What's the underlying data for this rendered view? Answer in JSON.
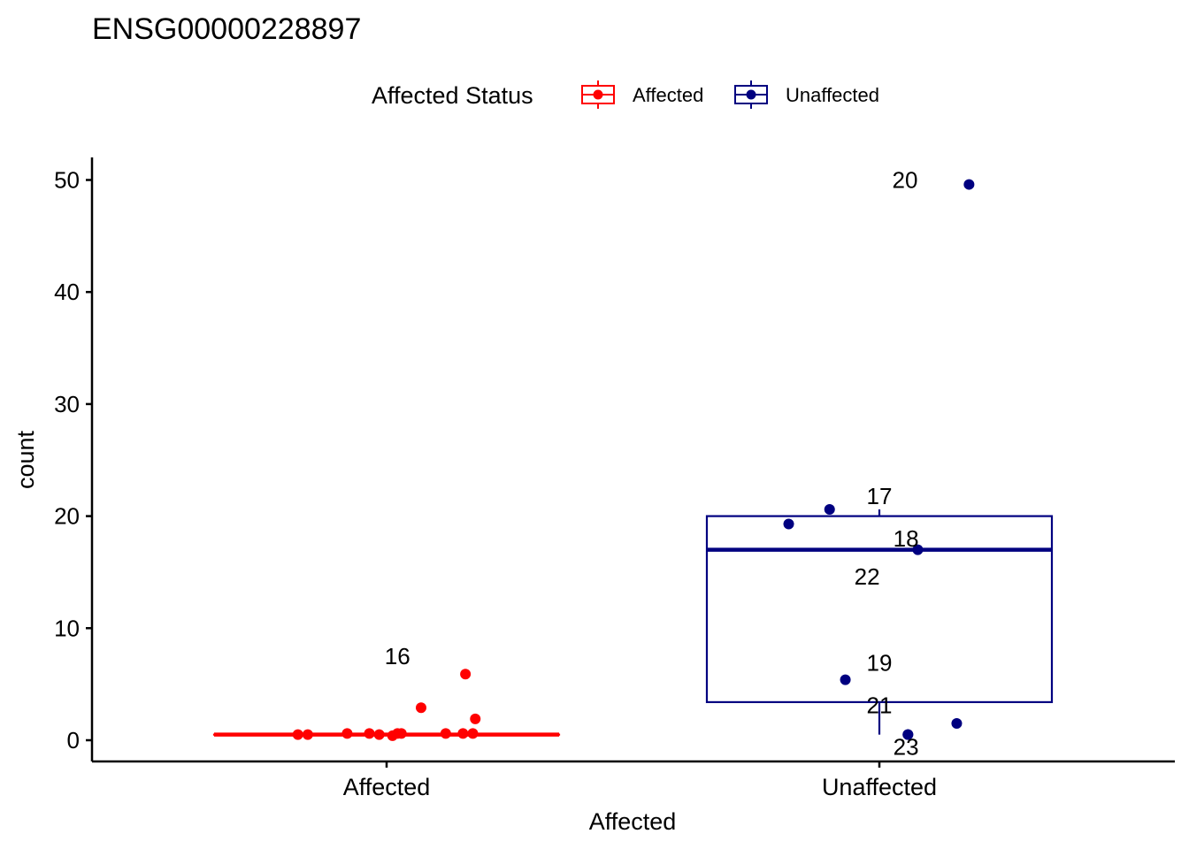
{
  "chart_data": {
    "type": "box",
    "title": "ENSG00000228897",
    "xlabel": "Affected",
    "ylabel": "count",
    "ylim": [
      -2,
      52
    ],
    "y_ticks": [
      0,
      10,
      20,
      30,
      40,
      50
    ],
    "categories": [
      "Affected",
      "Unaffected"
    ],
    "legend": {
      "title": "Affected Status",
      "position": "top",
      "entries": [
        {
          "label": "Affected",
          "color": "#ff0000"
        },
        {
          "label": "Unaffected",
          "color": "#000080"
        }
      ]
    },
    "grid": false,
    "boxes": [
      {
        "category": "Affected",
        "color": "#ff0000",
        "lower_whisker": 0.5,
        "q1": 0.5,
        "median": 0.5,
        "q3": 0.5,
        "upper_whisker": 0.5
      },
      {
        "category": "Unaffected",
        "color": "#000080",
        "lower_whisker": 0.5,
        "q1": 3.4,
        "median": 17.0,
        "q3": 20.0,
        "upper_whisker": 20.6
      }
    ],
    "points": [
      {
        "category": "Affected",
        "jitter": -0.18,
        "y": 0.5
      },
      {
        "category": "Affected",
        "jitter": -0.16,
        "y": 0.5
      },
      {
        "category": "Affected",
        "jitter": -0.08,
        "y": 0.6
      },
      {
        "category": "Affected",
        "jitter": -0.035,
        "y": 0.6
      },
      {
        "category": "Affected",
        "jitter": -0.015,
        "y": 0.5
      },
      {
        "category": "Affected",
        "jitter": 0.012,
        "y": 0.4
      },
      {
        "category": "Affected",
        "jitter": 0.022,
        "y": 0.6
      },
      {
        "category": "Affected",
        "jitter": 0.03,
        "y": 0.6
      },
      {
        "category": "Affected",
        "jitter": 0.07,
        "y": 2.9
      },
      {
        "category": "Affected",
        "jitter": 0.12,
        "y": 0.6
      },
      {
        "category": "Affected",
        "jitter": 0.155,
        "y": 0.6
      },
      {
        "category": "Affected",
        "jitter": 0.16,
        "y": 5.9,
        "label": "16"
      },
      {
        "category": "Affected",
        "jitter": 0.175,
        "y": 0.6
      },
      {
        "category": "Affected",
        "jitter": 0.18,
        "y": 1.9
      },
      {
        "category": "Unaffected",
        "jitter": -0.184,
        "y": 19.3
      },
      {
        "category": "Unaffected",
        "jitter": -0.101,
        "y": 20.6,
        "label": "17"
      },
      {
        "category": "Unaffected",
        "jitter": 0.078,
        "y": 17.0,
        "label": "18"
      },
      {
        "category": "Unaffected",
        "jitter": -0.069,
        "y": 5.4,
        "label": "19"
      },
      {
        "category": "Unaffected",
        "jitter": 0.182,
        "y": 49.6,
        "label": "20"
      },
      {
        "category": "Unaffected",
        "jitter": 0.058,
        "y": 0.5,
        "label": "21"
      },
      {
        "category": "Unaffected",
        "jitter": 0.157,
        "y": 1.5,
        "label": "22"
      },
      {
        "category": "Unaffected",
        "jitter": 0.058,
        "y": 0.5,
        "label": "23"
      }
    ],
    "annotations": [
      {
        "text": "16",
        "category": "Affected",
        "dx": 0.022,
        "y": 7.5
      },
      {
        "text": "17",
        "category": "Unaffected",
        "dx": 0.0,
        "y": 21.8
      },
      {
        "text": "18",
        "category": "Unaffected",
        "dx": 0.054,
        "y": 18.0
      },
      {
        "text": "22",
        "category": "Unaffected",
        "dx": -0.025,
        "y": 14.6
      },
      {
        "text": "19",
        "category": "Unaffected",
        "dx": 0.0,
        "y": 6.9
      },
      {
        "text": "20",
        "category": "Unaffected",
        "dx": 0.052,
        "y": 50.0
      },
      {
        "text": "21",
        "category": "Unaffected",
        "dx": 0.0,
        "y": 3.1
      },
      {
        "text": "23",
        "category": "Unaffected",
        "dx": 0.054,
        "y": -0.6
      }
    ]
  }
}
